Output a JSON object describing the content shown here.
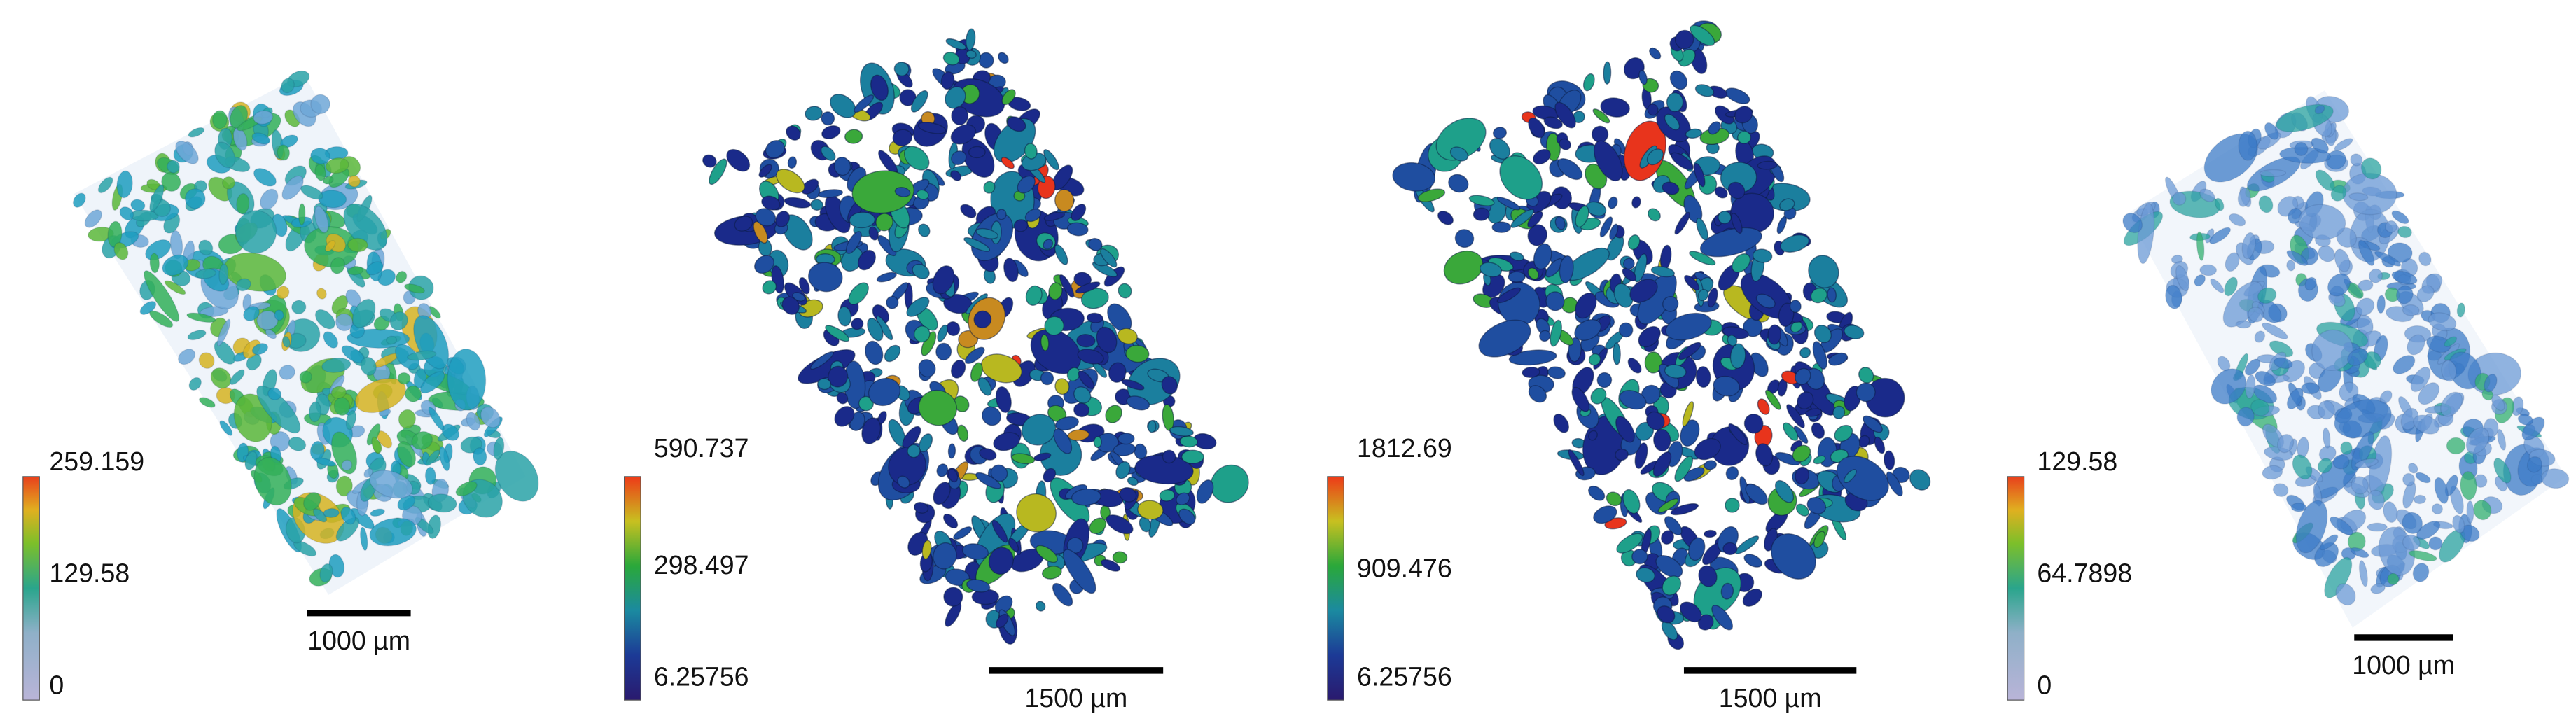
{
  "panels": [
    {
      "colorbar_labels": [
        "259.159",
        "129.58",
        "0"
      ],
      "scale_bar_label": "1000 µm"
    },
    {
      "colorbar_labels": [
        "590.737",
        "298.497",
        "6.25756"
      ],
      "scale_bar_label": "1500 µm"
    },
    {
      "colorbar_labels": [
        "1812.69",
        "909.476",
        "6.25756"
      ],
      "scale_bar_label": "1500 µm"
    },
    {
      "colorbar_labels": [
        "129.58",
        "64.7898",
        "0"
      ],
      "scale_bar_label": "1000 µm"
    }
  ]
}
